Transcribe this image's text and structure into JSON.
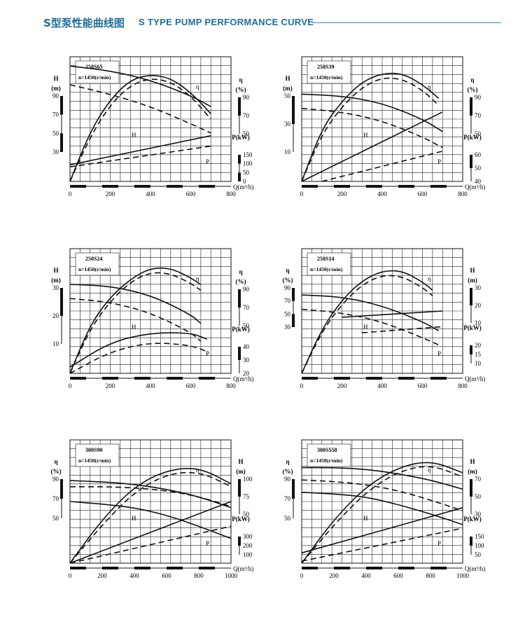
{
  "header": {
    "title_cn": "S型泵性能曲线图",
    "title_en": "S TYPE PUMP PERFORMANCE CURVE",
    "accent_color": "#1f6f95"
  },
  "chart_data": [
    {
      "type": "line",
      "model": "250S65",
      "speed": "n=1450(r/min)",
      "x_label": "Q(m³/h)",
      "x_ticks": [
        "0",
        "200",
        "400",
        "600",
        "800"
      ],
      "xlim": [
        0,
        800
      ],
      "axes": {
        "H": {
          "label": "H",
          "unit": "(m)",
          "ticks": [
            "90",
            "70",
            "50",
            "30"
          ],
          "range": [
            10,
            90
          ]
        },
        "eta": {
          "label": "η",
          "unit": "(%)",
          "ticks": [
            "90",
            "70",
            "50"
          ],
          "range": [
            20,
            90
          ]
        },
        "P": {
          "label": "P(kW)",
          "ticks": [
            "150",
            "100",
            "50",
            "0"
          ],
          "range": [
            0,
            300
          ]
        }
      },
      "series": [
        {
          "name": "H",
          "axis": "H",
          "style": "solid",
          "x": [
            0,
            200,
            400,
            600,
            700
          ],
          "y": [
            84,
            81,
            75,
            65,
            58
          ]
        },
        {
          "name": "H",
          "axis": "H",
          "style": "dashed",
          "x": [
            0,
            200,
            400,
            600,
            700
          ],
          "y": [
            72,
            66,
            58,
            47,
            41
          ]
        },
        {
          "name": "η",
          "axis": "eta",
          "style": "solid",
          "x": [
            0,
            100,
            200,
            300,
            400,
            500,
            600,
            700
          ],
          "y": [
            20,
            48,
            66,
            77,
            80,
            78,
            70,
            58
          ]
        },
        {
          "name": "η",
          "axis": "eta",
          "style": "dashed",
          "x": [
            0,
            100,
            200,
            300,
            400,
            500,
            600,
            700
          ],
          "y": [
            20,
            45,
            63,
            74,
            78,
            76,
            68,
            55
          ]
        },
        {
          "name": "P",
          "axis": "P",
          "style": "solid",
          "x": [
            0,
            700
          ],
          "y": [
            40,
            110
          ]
        },
        {
          "name": "P",
          "axis": "P",
          "style": "dashed",
          "x": [
            0,
            700
          ],
          "y": [
            35,
            85
          ]
        }
      ],
      "annotations": [
        "η",
        "H",
        "P"
      ]
    },
    {
      "type": "line",
      "model": "250S39",
      "speed": "n=1450(r/min)",
      "x_label": "Q(m³/h)",
      "x_ticks": [
        "0",
        "200",
        "400",
        "600",
        "800"
      ],
      "xlim": [
        0,
        800
      ],
      "axes": {
        "H": {
          "label": "H",
          "unit": "(m)",
          "ticks": [
            "50",
            "30",
            "10"
          ],
          "range": [
            0,
            70
          ]
        },
        "eta": {
          "label": "η",
          "unit": "(%)",
          "ticks": [
            "90",
            "70",
            "50"
          ],
          "range": [
            10,
            100
          ]
        },
        "P": {
          "label": "P(kW)",
          "ticks": [
            "60",
            "50",
            "40"
          ],
          "range": [
            30,
            100
          ]
        }
      },
      "series": [
        {
          "name": "H",
          "axis": "H",
          "style": "solid",
          "x": [
            0,
            200,
            400,
            600,
            700
          ],
          "y": [
            49,
            48,
            44,
            35,
            28
          ]
        },
        {
          "name": "H",
          "axis": "H",
          "style": "dashed",
          "x": [
            0,
            200,
            400,
            600,
            700
          ],
          "y": [
            41,
            39,
            34,
            25,
            19
          ]
        },
        {
          "name": "η",
          "axis": "eta",
          "style": "solid",
          "x": [
            0,
            100,
            200,
            300,
            400,
            500,
            600,
            680
          ],
          "y": [
            10,
            48,
            68,
            82,
            88,
            88,
            80,
            70
          ]
        },
        {
          "name": "η",
          "axis": "eta",
          "style": "dashed",
          "x": [
            0,
            100,
            200,
            300,
            400,
            500,
            600,
            680
          ],
          "y": [
            10,
            44,
            64,
            78,
            85,
            84,
            76,
            65
          ]
        },
        {
          "name": "P",
          "axis": "P",
          "style": "solid",
          "x": [
            0,
            700
          ],
          "y": [
            30,
            69
          ]
        },
        {
          "name": "P",
          "axis": "P",
          "style": "dashed",
          "x": [
            100,
            700
          ],
          "y": [
            30,
            47
          ]
        }
      ],
      "annotations": [
        "η",
        "H",
        "P"
      ]
    },
    {
      "type": "line",
      "model": "250S24",
      "speed": "n=1450(r/min)",
      "x_label": "Q(m³/h)",
      "x_ticks": [
        "0",
        "200",
        "400",
        "600",
        "800"
      ],
      "xlim": [
        0,
        800
      ],
      "axes": {
        "H": {
          "label": "H",
          "unit": "(m)",
          "ticks": [
            "30",
            "20",
            "10"
          ],
          "range": [
            0,
            35
          ]
        },
        "eta": {
          "label": "η",
          "unit": "(%)",
          "ticks": [
            "90",
            "70",
            "50"
          ],
          "range": [
            10,
            100
          ]
        },
        "P": {
          "label": "P(kW)",
          "ticks": [
            "40",
            "30",
            "20"
          ],
          "range": [
            20,
            60
          ]
        }
      },
      "series": [
        {
          "name": "H",
          "axis": "H",
          "style": "solid",
          "x": [
            0,
            200,
            400,
            600,
            650
          ],
          "y": [
            25,
            24.5,
            22,
            16.5,
            14
          ]
        },
        {
          "name": "H",
          "axis": "H",
          "style": "dashed",
          "x": [
            0,
            200,
            400,
            600,
            650
          ],
          "y": [
            21,
            20,
            17,
            11.5,
            9
          ]
        },
        {
          "name": "η",
          "axis": "eta",
          "style": "solid",
          "x": [
            0,
            100,
            200,
            300,
            400,
            500,
            600,
            650
          ],
          "y": [
            10,
            45,
            65,
            78,
            86,
            86,
            79,
            74
          ]
        },
        {
          "name": "η",
          "axis": "eta",
          "style": "dashed",
          "x": [
            0,
            100,
            200,
            300,
            400,
            500,
            600,
            650
          ],
          "y": [
            10,
            42,
            62,
            76,
            83,
            82,
            75,
            70
          ]
        },
        {
          "name": "P",
          "axis": "P",
          "style": "solid",
          "x": [
            0,
            200,
            400,
            600,
            680
          ],
          "y": [
            22,
            30,
            33,
            33,
            31
          ]
        },
        {
          "name": "P",
          "axis": "P",
          "style": "dashed",
          "x": [
            0,
            200,
            400,
            600,
            680
          ],
          "y": [
            20,
            27,
            30,
            29,
            27
          ]
        }
      ],
      "annotations": [
        "η",
        "H",
        "P"
      ]
    },
    {
      "type": "line",
      "model": "250S14",
      "speed": "n=1450(r/min)",
      "x_label": "Q(m³/h)",
      "x_ticks": [
        "0",
        "200",
        "400",
        "600",
        "800"
      ],
      "xlim": [
        0,
        800
      ],
      "axes": {
        "H": {
          "label": "H",
          "unit": "(m)",
          "ticks": [
            "30",
            "20",
            "10"
          ],
          "range": [
            0,
            35
          ]
        },
        "eta": {
          "label": "η",
          "unit": "(%)",
          "ticks": [
            "90",
            "70",
            "50",
            "30"
          ],
          "range": [
            10,
            100
          ]
        },
        "P": {
          "label": "P(kW)",
          "ticks": [
            "20",
            "15",
            "10"
          ],
          "range": [
            0,
            40
          ]
        }
      },
      "series": [
        {
          "name": "H",
          "axis": "H",
          "style": "solid",
          "x": [
            0,
            200,
            400,
            600,
            680
          ],
          "y": [
            22,
            21.5,
            19,
            14.5,
            12
          ]
        },
        {
          "name": "H",
          "axis": "H",
          "style": "dashed",
          "x": [
            0,
            200,
            400,
            600,
            680
          ],
          "y": [
            18,
            17,
            14.5,
            10,
            8
          ]
        },
        {
          "name": "η",
          "axis": "eta",
          "style": "solid",
          "x": [
            0,
            100,
            200,
            300,
            400,
            500,
            600,
            650
          ],
          "y": [
            10,
            42,
            63,
            77,
            84,
            84,
            76,
            70
          ]
        },
        {
          "name": "η",
          "axis": "eta",
          "style": "dashed",
          "x": [
            0,
            100,
            200,
            300,
            400,
            500,
            600,
            650
          ],
          "y": [
            10,
            40,
            60,
            74,
            81,
            80,
            72,
            66
          ]
        },
        {
          "name": "P",
          "axis": "P",
          "style": "solid",
          "x": [
            200,
            700
          ],
          "y": [
            18,
            20
          ]
        },
        {
          "name": "P",
          "axis": "P",
          "style": "dashed",
          "x": [
            300,
            700
          ],
          "y": [
            13,
            15
          ]
        }
      ],
      "annotations": [
        "η",
        "H",
        "P"
      ]
    },
    {
      "type": "line",
      "model": "300S90",
      "speed": "n=1450(r/min)",
      "x_label": "Q(m³/h)",
      "x_ticks": [
        "0",
        "200",
        "400",
        "600",
        "800",
        "1000"
      ],
      "xlim": [
        0,
        1000
      ],
      "axes": {
        "H": {
          "label": "H",
          "unit": "(m)",
          "ticks": [
            "100",
            "75",
            "50"
          ],
          "range": [
            25,
            125
          ]
        },
        "eta": {
          "label": "η",
          "unit": "(%)",
          "ticks": [
            "90",
            "70",
            "50"
          ],
          "range": [
            10,
            100
          ]
        },
        "P": {
          "label": "P(kW)",
          "ticks": [
            "300",
            "200",
            "100"
          ],
          "range": [
            50,
            550
          ]
        }
      },
      "series": [
        {
          "name": "H",
          "axis": "H",
          "style": "solid",
          "x": [
            0,
            200,
            400,
            600,
            800,
            1000
          ],
          "y": [
            92,
            91,
            89,
            85,
            79,
            70
          ]
        },
        {
          "name": "H",
          "axis": "H",
          "style": "solid",
          "x": [
            0,
            200,
            400,
            600,
            800,
            1000
          ],
          "y": [
            75,
            73,
            70,
            64,
            55,
            45
          ]
        },
        {
          "name": "H",
          "axis": "H",
          "style": "dashed",
          "x": [
            0,
            300,
            600,
            800,
            1000
          ],
          "y": [
            87,
            87,
            84,
            79,
            71
          ]
        },
        {
          "name": "η",
          "axis": "eta",
          "style": "solid",
          "x": [
            0,
            200,
            400,
            600,
            800,
            1000
          ],
          "y": [
            10,
            42,
            66,
            78,
            80,
            68
          ]
        },
        {
          "name": "η",
          "axis": "eta",
          "style": "dashed",
          "x": [
            0,
            200,
            400,
            600,
            800,
            1000
          ],
          "y": [
            10,
            38,
            62,
            75,
            77,
            66
          ]
        },
        {
          "name": "P",
          "axis": "P",
          "style": "solid",
          "x": [
            0,
            1000
          ],
          "y": [
            50,
            300
          ]
        },
        {
          "name": "P",
          "axis": "P",
          "style": "dashed",
          "x": [
            0,
            1000
          ],
          "y": [
            50,
            200
          ]
        }
      ],
      "annotations": [
        "η",
        "H",
        "P"
      ]
    },
    {
      "type": "line",
      "model": "300S558",
      "speed": "n=1450(r/min)",
      "x_label": "Q(m³/h)",
      "x_ticks": [
        "0",
        "200",
        "400",
        "600",
        "800",
        "1000"
      ],
      "xlim": [
        0,
        1000
      ],
      "axes": {
        "H": {
          "label": "H",
          "unit": "(m)",
          "ticks": [
            "70",
            "50",
            "30"
          ],
          "range": [
            10,
            90
          ]
        },
        "eta": {
          "label": "η",
          "unit": "(%)",
          "ticks": [
            "90",
            "70",
            "50"
          ],
          "range": [
            10,
            100
          ]
        },
        "P": {
          "label": "P(kW)",
          "ticks": [
            "150",
            "100",
            "50"
          ],
          "range": [
            25,
            325
          ]
        }
      },
      "series": [
        {
          "name": "H",
          "axis": "H",
          "style": "solid",
          "x": [
            0,
            200,
            400,
            600,
            800,
            1000
          ],
          "y": [
            72,
            72,
            71,
            68,
            64,
            58
          ]
        },
        {
          "name": "H",
          "axis": "H",
          "style": "solid",
          "x": [
            0,
            200,
            400,
            600,
            800,
            1000
          ],
          "y": [
            56,
            55,
            53,
            48,
            42,
            35
          ]
        },
        {
          "name": "H",
          "axis": "H",
          "style": "dashed",
          "x": [
            0,
            200,
            400,
            600,
            800,
            1000
          ],
          "y": [
            64,
            63,
            61,
            57,
            51,
            44
          ]
        },
        {
          "name": "η",
          "axis": "eta",
          "style": "solid",
          "x": [
            0,
            200,
            400,
            600,
            800,
            1000
          ],
          "y": [
            10,
            42,
            66,
            80,
            85,
            76
          ]
        },
        {
          "name": "η",
          "axis": "eta",
          "style": "dashed",
          "x": [
            0,
            200,
            400,
            600,
            800,
            1000
          ],
          "y": [
            10,
            38,
            62,
            77,
            82,
            73
          ]
        },
        {
          "name": "P",
          "axis": "P",
          "style": "solid",
          "x": [
            0,
            1000
          ],
          "y": [
            50,
            160
          ]
        },
        {
          "name": "P",
          "axis": "P",
          "style": "dashed",
          "x": [
            0,
            1000
          ],
          "y": [
            30,
            110
          ]
        }
      ],
      "annotations": [
        "η",
        "H",
        "P"
      ]
    }
  ]
}
